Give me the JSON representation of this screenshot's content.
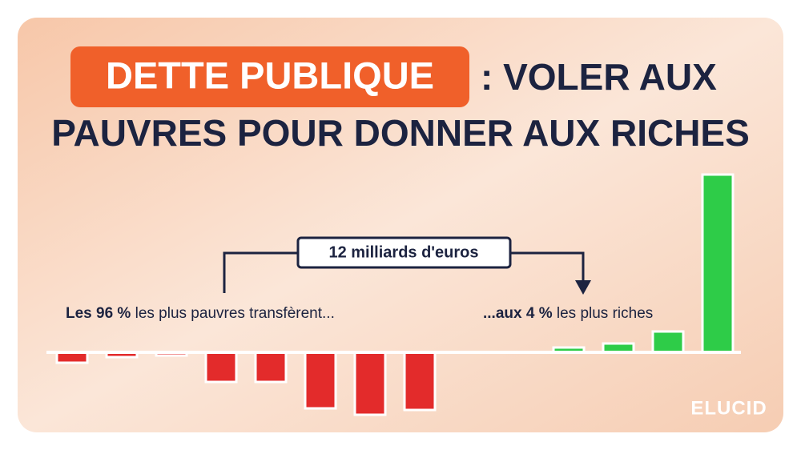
{
  "chart_data": {
    "type": "bar",
    "title_highlight": "DETTE PUBLIQUE",
    "title_rest": ": VOLER AUX",
    "title_line2": "PAUVRES POUR DONNER AUX RICHES",
    "transfer_label": "12 milliards d'euros",
    "left_note_bold": "Les 96 %",
    "left_note": " les plus pauvres transfèrent...",
    "right_note_bold": "...aux 4 %",
    "right_note": " les plus riches",
    "logo": "ELUCID",
    "values": [
      -13,
      -6,
      -4,
      -37,
      -37,
      -70,
      -78,
      -72,
      6,
      11,
      26,
      222
    ],
    "ylim": [
      -85,
      225
    ],
    "negative_color": "#e32b2b",
    "positive_color": "#2ecc48"
  }
}
